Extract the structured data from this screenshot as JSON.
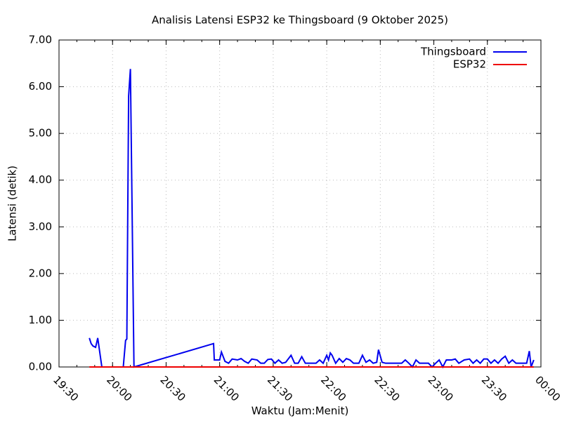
{
  "chart_data": {
    "type": "line",
    "title": "Analisis Latensi ESP32 ke Thingsboard (9 Oktober 2025)",
    "x_label": "Waktu (Jam:Menit)",
    "y_label": "Latensi (detik)",
    "xlim": [
      1170,
      1440
    ],
    "ylim": [
      0,
      7
    ],
    "xticks": [
      {
        "value": 1170,
        "label": "19:30"
      },
      {
        "value": 1200,
        "label": "20:00"
      },
      {
        "value": 1230,
        "label": "20:30"
      },
      {
        "value": 1260,
        "label": "21:00"
      },
      {
        "value": 1290,
        "label": "21:30"
      },
      {
        "value": 1320,
        "label": "22:00"
      },
      {
        "value": 1350,
        "label": "22:30"
      },
      {
        "value": 1380,
        "label": "23:00"
      },
      {
        "value": 1410,
        "label": "23:30"
      },
      {
        "value": 1440,
        "label": "00:00"
      }
    ],
    "yticks": [
      {
        "value": 0,
        "label": "0.00"
      },
      {
        "value": 1,
        "label": "1.00"
      },
      {
        "value": 2,
        "label": "2.00"
      },
      {
        "value": 3,
        "label": "3.00"
      },
      {
        "value": 4,
        "label": "4.00"
      },
      {
        "value": 5,
        "label": "5.00"
      },
      {
        "value": 6,
        "label": "6.00"
      },
      {
        "value": 7,
        "label": "7.00"
      }
    ],
    "grid": true,
    "legend": "top-right",
    "series": [
      {
        "name": "Thingsboard",
        "color": "#0000ee",
        "x": [
          1187,
          1188,
          1189,
          1190.5,
          1191.7,
          1194,
          1206,
          1207.3,
          1208,
          1209,
          1210,
          1212,
          1256.6,
          1257,
          1260,
          1261,
          1263,
          1265,
          1267,
          1270,
          1272,
          1274,
          1276,
          1278,
          1281,
          1283,
          1285,
          1287,
          1289,
          1291,
          1293,
          1295,
          1297,
          1300,
          1302,
          1304,
          1306,
          1308,
          1311,
          1314,
          1316,
          1318,
          1320,
          1321,
          1322,
          1323,
          1325,
          1327,
          1329,
          1331,
          1333,
          1335,
          1338,
          1340,
          1342,
          1344,
          1346,
          1348,
          1349,
          1351,
          1353,
          1356,
          1359,
          1362,
          1364,
          1366,
          1368,
          1370,
          1372,
          1375,
          1377,
          1379,
          1381,
          1383,
          1385,
          1387,
          1390,
          1392,
          1394,
          1397,
          1400,
          1402,
          1404,
          1406,
          1408,
          1410,
          1412,
          1414,
          1416,
          1418,
          1420,
          1422,
          1424,
          1426,
          1428,
          1430,
          1432,
          1433.5,
          1434.5,
          1436
        ],
        "values": [
          0.62,
          0.5,
          0.45,
          0.42,
          0.62,
          0,
          0,
          0.57,
          0.6,
          5.8,
          6.38,
          0,
          0.5,
          0.15,
          0.15,
          0.32,
          0.12,
          0.08,
          0.17,
          0.15,
          0.18,
          0.12,
          0.08,
          0.17,
          0.15,
          0.08,
          0.08,
          0.16,
          0.17,
          0.08,
          0.15,
          0.08,
          0.1,
          0.25,
          0.08,
          0.08,
          0.22,
          0.08,
          0.08,
          0.08,
          0.15,
          0.08,
          0.25,
          0.15,
          0.3,
          0.25,
          0.08,
          0.18,
          0.1,
          0.18,
          0.15,
          0.08,
          0.08,
          0.25,
          0.1,
          0.15,
          0.08,
          0.1,
          0.37,
          0.1,
          0.08,
          0.08,
          0.08,
          0.08,
          0.15,
          0.08,
          0,
          0.15,
          0.08,
          0.08,
          0.08,
          0,
          0.08,
          0.15,
          0,
          0.15,
          0.15,
          0.17,
          0.08,
          0.15,
          0.17,
          0.08,
          0.15,
          0.08,
          0.17,
          0.17,
          0.08,
          0.15,
          0.08,
          0.17,
          0.23,
          0.08,
          0.15,
          0.08,
          0.08,
          0.08,
          0.08,
          0.34,
          0,
          0.15
        ]
      },
      {
        "name": "ESP32",
        "color": "#ee0000",
        "x": [
          1187,
          1436
        ],
        "values": [
          0,
          0
        ]
      }
    ]
  }
}
